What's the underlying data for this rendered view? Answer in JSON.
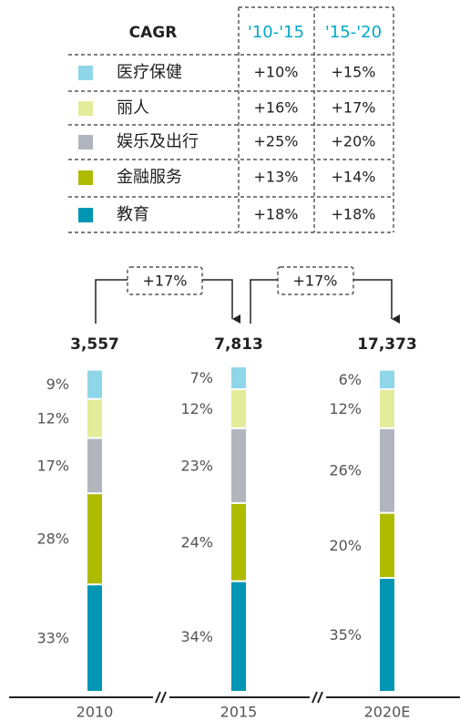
{
  "chart_data": {
    "type": "stacked_bar",
    "categories": [
      "2010",
      "2015",
      "2020E"
    ],
    "totals": [
      {
        "value": 3557,
        "label": "3,557"
      },
      {
        "value": 7813,
        "label": "7,813"
      },
      {
        "value": 17373,
        "label": "17,373"
      }
    ],
    "ylim": [
      0,
      100
    ],
    "series": [
      {
        "name": "医疗保健",
        "color": "#8fd6e8",
        "values": [
          9,
          7,
          6
        ],
        "value_labels": [
          "9%",
          "7%",
          "6%"
        ]
      },
      {
        "name": "丽人",
        "color": "#e3ec9a",
        "values": [
          12,
          12,
          12
        ],
        "value_labels": [
          "12%",
          "12%",
          "12%"
        ]
      },
      {
        "name": "娱乐及出行",
        "color": "#b1b5bd",
        "values": [
          17,
          23,
          26
        ],
        "value_labels": [
          "17%",
          "23%",
          "26%"
        ]
      },
      {
        "name": "金融服务",
        "color": "#aebb00",
        "values": [
          28,
          24,
          20
        ],
        "value_labels": [
          "28%",
          "24%",
          "20%"
        ]
      },
      {
        "name": "教育",
        "color": "#0096b4",
        "values": [
          33,
          34,
          35
        ],
        "value_labels": [
          "33%",
          "34%",
          "35%"
        ]
      }
    ],
    "table": {
      "header": [
        "CAGR",
        "'10-'15",
        "'15-'20"
      ],
      "rows": [
        [
          "+10%",
          "+15%"
        ],
        [
          "+16%",
          "+17%"
        ],
        [
          "+25%",
          "+20%"
        ],
        [
          "+13%",
          "+14%"
        ],
        [
          "+18%",
          "+18%"
        ]
      ]
    },
    "growth_labels": [
      "+17%",
      "+17%"
    ]
  }
}
